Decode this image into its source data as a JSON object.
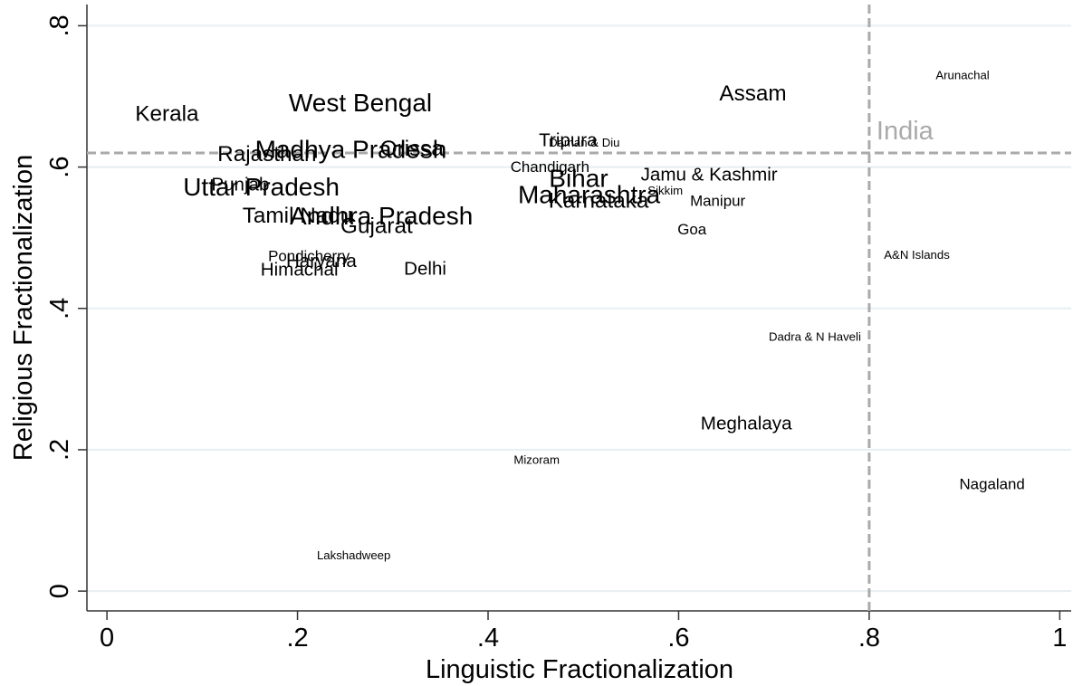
{
  "chart_data": {
    "type": "scatter",
    "xlabel": "Linguistic Fractionalization",
    "ylabel": "Religious Fractionalization",
    "names": [
      "Kerala",
      "West Bengal",
      "Assam",
      "Arunachal",
      "Rajasthan",
      "Madhya Pradesh",
      "Orissa",
      "Tripura",
      "Daman & Diu",
      "Chandigarh",
      "Bihar",
      "Jamu & Kashmir",
      "Sikkim",
      "Manipur",
      "Maharashtra",
      "Karnataka",
      "Goa",
      "Uttar Pradesh",
      "Punjab",
      "Tamil Nadu",
      "Andhra Pradesh",
      "Gujarat",
      "Pondicherry",
      "Haryana",
      "Himachal",
      "Delhi",
      "A&N Islands",
      "Dadra & N Haveli",
      "Meghalaya",
      "Mizoram",
      "Nagaland",
      "Lakshadweep"
    ],
    "x": [
      0.063,
      0.266,
      0.678,
      0.898,
      0.168,
      0.256,
      0.32,
      0.484,
      0.501,
      0.465,
      0.495,
      0.632,
      0.586,
      0.641,
      0.506,
      0.516,
      0.614,
      0.162,
      0.14,
      0.2,
      0.288,
      0.283,
      0.212,
      0.225,
      0.202,
      0.334,
      0.85,
      0.743,
      0.671,
      0.451,
      0.929,
      0.259
    ],
    "y": [
      0.675,
      0.691,
      0.704,
      0.73,
      0.618,
      0.625,
      0.626,
      0.638,
      0.635,
      0.6,
      0.584,
      0.589,
      0.567,
      0.552,
      0.561,
      0.552,
      0.512,
      0.572,
      0.575,
      0.531,
      0.531,
      0.516,
      0.474,
      0.467,
      0.455,
      0.456,
      0.476,
      0.36,
      0.237,
      0.186,
      0.151,
      0.051
    ],
    "sizes": [
      4,
      5,
      4,
      1,
      4,
      5,
      4,
      3,
      1,
      2,
      5,
      3,
      1,
      2,
      5,
      4,
      2,
      5,
      3,
      4,
      5,
      4,
      2,
      3,
      3,
      3,
      1,
      1,
      3,
      1,
      2,
      1
    ],
    "reference": {
      "label": "India",
      "x": 0.8,
      "y": 0.62,
      "color": "#aaaaaa"
    },
    "color": "#000000",
    "xlim": [
      -0.021,
      1.012
    ],
    "ylim": [
      -0.028,
      0.83
    ],
    "xticks": [
      0,
      {
        "value": 0.2,
        "label": ".2"
      },
      {
        "value": 0.4,
        "label": ".4"
      },
      {
        "value": 0.6,
        "label": ".6"
      },
      {
        "value": 0.8,
        "label": ".8"
      },
      1
    ],
    "yticks": [
      0,
      {
        "value": 0.2,
        "label": ".2"
      },
      {
        "value": 0.4,
        "label": ".4"
      },
      {
        "value": 0.6,
        "label": ".6"
      },
      {
        "value": 0.8,
        "label": ".8"
      }
    ],
    "grid": true
  }
}
